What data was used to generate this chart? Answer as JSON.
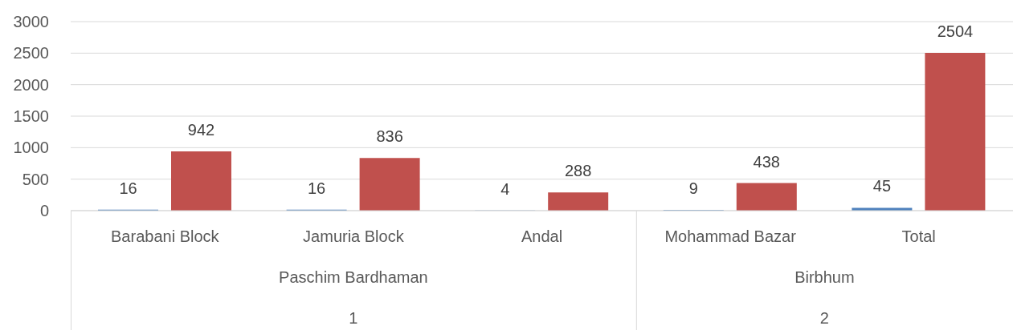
{
  "chart_data": {
    "type": "bar",
    "categories": [
      "Barabani Block",
      "Jamuria Block",
      "Andal",
      "Mohammad Bazar",
      "Total"
    ],
    "series": [
      {
        "color": "#4f81bd",
        "values": [
          16,
          16,
          4,
          9,
          45
        ]
      },
      {
        "color": "#c0504d",
        "values": [
          942,
          836,
          288,
          438,
          2504
        ]
      }
    ],
    "ylim": [
      0,
      3000
    ],
    "yticks": [
      0,
      500,
      1000,
      1500,
      2000,
      2500,
      3000
    ],
    "grid": "y",
    "data_labels": true,
    "annotations": [
      "Paschim Bardhaman",
      "Birbhum",
      "1",
      "2"
    ]
  }
}
